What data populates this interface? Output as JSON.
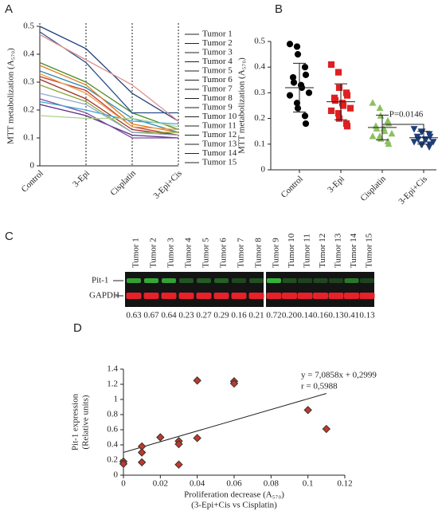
{
  "chart_data": [
    {
      "type": "line",
      "label": "A",
      "y_label": "MTT metabolization (A₅₇₀)",
      "categories": [
        "Control",
        "3-Epi",
        "Cisplatin",
        "3-Epi+Cis"
      ],
      "ylim": [
        0,
        0.5
      ],
      "yticks": [
        0,
        0.1,
        0.2,
        0.3,
        0.4,
        0.5
      ],
      "xgrid": true,
      "series": [
        {
          "name": "Tumor 1",
          "color": "#1f3f7a",
          "values": [
            0.5,
            0.42,
            0.26,
            0.16
          ]
        },
        {
          "name": "Tumor 2",
          "color": "#c0392b",
          "values": [
            0.32,
            0.27,
            0.14,
            0.11
          ]
        },
        {
          "name": "Tumor 3",
          "color": "#4a8a2a",
          "values": [
            0.37,
            0.3,
            0.19,
            0.13
          ]
        },
        {
          "name": "Tumor 4",
          "color": "#5b2a86",
          "values": [
            0.22,
            0.18,
            0.11,
            0.1
          ]
        },
        {
          "name": "Tumor 5",
          "color": "#2a8ab0",
          "values": [
            0.34,
            0.28,
            0.17,
            0.12
          ]
        },
        {
          "name": "Tumor 6",
          "color": "#e07b20",
          "values": [
            0.36,
            0.29,
            0.15,
            0.12
          ]
        },
        {
          "name": "Tumor 7",
          "color": "#2b4f8c",
          "values": [
            0.48,
            0.37,
            0.19,
            0.19
          ]
        },
        {
          "name": "Tumor 8",
          "color": "#a0302a",
          "values": [
            0.31,
            0.24,
            0.13,
            0.11
          ]
        },
        {
          "name": "Tumor 9",
          "color": "#8aa832",
          "values": [
            0.29,
            0.23,
            0.12,
            0.12
          ]
        },
        {
          "name": "Tumor 10",
          "color": "#7a4fa0",
          "values": [
            0.24,
            0.19,
            0.1,
            0.1
          ]
        },
        {
          "name": "Tumor 11",
          "color": "#3fa8d0",
          "values": [
            0.23,
            0.2,
            0.16,
            0.15
          ]
        },
        {
          "name": "Tumor 12",
          "color": "#f0a050",
          "values": [
            0.33,
            0.26,
            0.14,
            0.13
          ]
        },
        {
          "name": "Tumor 13",
          "color": "#8fa8d0",
          "values": [
            0.26,
            0.22,
            0.12,
            0.11
          ]
        },
        {
          "name": "Tumor 14",
          "color": "#e09090",
          "values": [
            0.47,
            0.38,
            0.29,
            0.16
          ]
        },
        {
          "name": "Tumor 15",
          "color": "#b0d090",
          "values": [
            0.18,
            0.17,
            0.17,
            0.14
          ]
        }
      ]
    },
    {
      "type": "dotplot",
      "label": "B",
      "y_label": "MTT metabolization (A₅₇₀)",
      "categories": [
        "Control",
        "3-Epi",
        "Cisplatin",
        "3-Epi+Cis"
      ],
      "ylim": [
        0,
        0.5
      ],
      "yticks": [
        0,
        0.1,
        0.2,
        0.3,
        0.4,
        0.5
      ],
      "annotation": "P=0.0146",
      "comparison": [
        2,
        3
      ],
      "groups": [
        {
          "color": "#000000",
          "marker": "circle",
          "mean": 0.32,
          "sd": 0.095,
          "values": [
            0.49,
            0.48,
            0.45,
            0.4,
            0.37,
            0.36,
            0.34,
            0.33,
            0.32,
            0.3,
            0.29,
            0.26,
            0.24,
            0.21,
            0.18
          ]
        },
        {
          "color": "#e02020",
          "marker": "square",
          "mean": 0.265,
          "sd": 0.07,
          "values": [
            0.41,
            0.38,
            0.32,
            0.3,
            0.29,
            0.28,
            0.27,
            0.26,
            0.25,
            0.24,
            0.23,
            0.22,
            0.2,
            0.18,
            0.17
          ]
        },
        {
          "color": "#8cc060",
          "marker": "triangle",
          "mean": 0.165,
          "sd": 0.048,
          "values": [
            0.26,
            0.24,
            0.21,
            0.19,
            0.18,
            0.17,
            0.16,
            0.16,
            0.15,
            0.14,
            0.13,
            0.13,
            0.12,
            0.11,
            0.1
          ]
        },
        {
          "color": "#1f3f7a",
          "marker": "triangle-down",
          "mean": 0.125,
          "sd": 0.025,
          "values": [
            0.16,
            0.15,
            0.15,
            0.14,
            0.13,
            0.13,
            0.12,
            0.12,
            0.12,
            0.11,
            0.11,
            0.1,
            0.1,
            0.09,
            0.1
          ]
        }
      ]
    },
    {
      "type": "scatter",
      "label": "D",
      "y_label": [
        "Pit-1 expression",
        "(Relative units)"
      ],
      "x_label": [
        "Proliferation decrease (A₅₇₀)",
        "(3-Epi+Cis vs Cisplatin)"
      ],
      "xlim": [
        0,
        0.12
      ],
      "xticks": [
        0,
        0.02,
        0.04,
        0.06,
        0.08,
        0.1,
        0.12
      ],
      "ylim": [
        0,
        1.4
      ],
      "yticks": [
        0,
        0.2,
        0.4,
        0.6,
        0.8,
        1,
        1.2,
        1.4
      ],
      "color": "#c0392b",
      "x": [
        0,
        0,
        0.01,
        0.01,
        0.01,
        0.02,
        0.03,
        0.03,
        0.03,
        0.04,
        0.04,
        0.06,
        0.06,
        0.1,
        0.11
      ],
      "values": [
        0.18,
        0.15,
        0.38,
        0.3,
        0.17,
        0.5,
        0.45,
        0.41,
        0.14,
        1.25,
        0.49,
        1.24,
        1.21,
        0.86,
        0.61
      ],
      "trendline": {
        "slope": 7.0858,
        "intercept": 0.2999,
        "x_range": [
          0,
          0.11
        ]
      },
      "annotations": [
        "y = 7,0858x + 0,2999",
        "r = 0,5988"
      ]
    }
  ],
  "blot": {
    "label": "C",
    "rows": [
      "Pit-1",
      "GAPDH"
    ],
    "lanes": [
      "Tumor 1",
      "Tumor 2",
      "Tumor 3",
      "Tumor 4",
      "Tumor 5",
      "Tumor 6",
      "Tumor 7",
      "Tumor 8",
      "Tumor 9",
      "Tumor 10",
      "Tumor 11",
      "Tumor 12",
      "Tumor 13",
      "Tumor 14",
      "Tumor 15"
    ],
    "ratios": [
      0.63,
      0.67,
      0.64,
      0.23,
      0.27,
      0.29,
      0.16,
      0.21,
      0.72,
      0.2,
      0.14,
      0.16,
      0.13,
      0.41,
      0.13
    ],
    "ratio_labels": [
      "0.63",
      "0.67",
      "0.64",
      "0.23",
      "0.27",
      "0.29",
      "0.16",
      "0.21",
      "0.72",
      "0.20",
      "0.14",
      "0.16",
      "0.13",
      "0.41",
      "0.13"
    ]
  }
}
